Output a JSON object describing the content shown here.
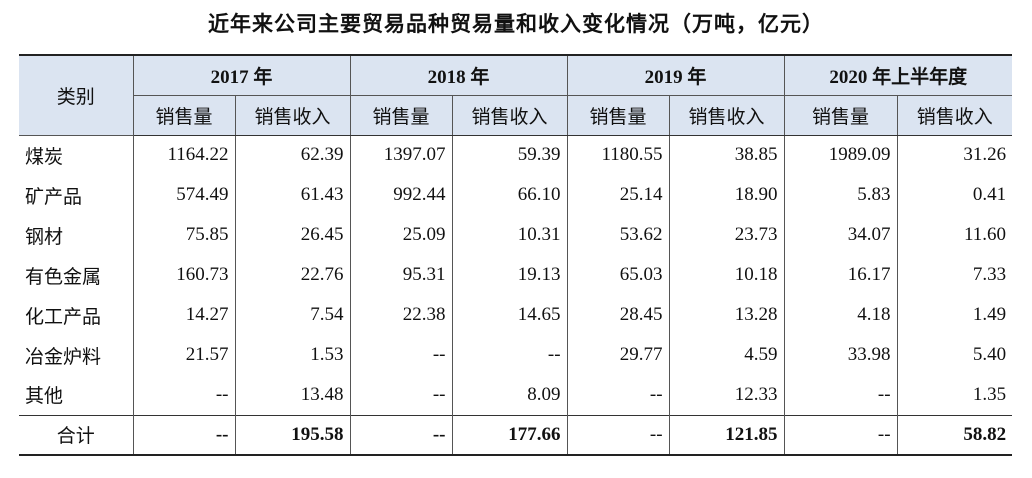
{
  "title": "近年来公司主要贸易品种贸易量和收入变化情况（万吨，亿元）",
  "header": {
    "category": "类别",
    "years": [
      "2017 年",
      "2018 年",
      "2019 年",
      "2020 年上半年度"
    ],
    "sub_volume": "销售量",
    "sub_revenue": "销售收入"
  },
  "rows": [
    {
      "name": "煤炭",
      "values": [
        "1164.22",
        "62.39",
        "1397.07",
        "59.39",
        "1180.55",
        "38.85",
        "1989.09",
        "31.26"
      ]
    },
    {
      "name": "矿产品",
      "values": [
        "574.49",
        "61.43",
        "992.44",
        "66.10",
        "25.14",
        "18.90",
        "5.83",
        "0.41"
      ]
    },
    {
      "name": "钢材",
      "values": [
        "75.85",
        "26.45",
        "25.09",
        "10.31",
        "53.62",
        "23.73",
        "34.07",
        "11.60"
      ]
    },
    {
      "name": "有色金属",
      "values": [
        "160.73",
        "22.76",
        "95.31",
        "19.13",
        "65.03",
        "10.18",
        "16.17",
        "7.33"
      ]
    },
    {
      "name": "化工产品",
      "values": [
        "14.27",
        "7.54",
        "22.38",
        "14.65",
        "28.45",
        "13.28",
        "4.18",
        "1.49"
      ]
    },
    {
      "name": "冶金炉料",
      "values": [
        "21.57",
        "1.53",
        "--",
        "--",
        "29.77",
        "4.59",
        "33.98",
        "5.40"
      ]
    },
    {
      "name": "其他",
      "values": [
        "--",
        "13.48",
        "--",
        "8.09",
        "--",
        "12.33",
        "--",
        "1.35"
      ]
    }
  ],
  "total": {
    "name": "合计",
    "values": [
      "--",
      "195.58",
      "--",
      "177.66",
      "--",
      "121.85",
      "--",
      "58.82"
    ]
  }
}
